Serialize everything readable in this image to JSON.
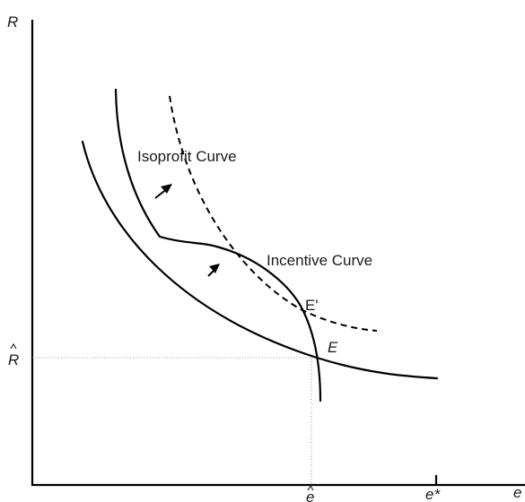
{
  "axes": {
    "y_label": "R",
    "x_label": "e",
    "r_hat": "R",
    "e_hat": "e",
    "e_star": "e*"
  },
  "curves": {
    "isoprofit_label": "Isoprofit Curve",
    "incentive_label": "Incentive Curve"
  },
  "points": {
    "E": "E",
    "E_prime": "E'"
  }
}
